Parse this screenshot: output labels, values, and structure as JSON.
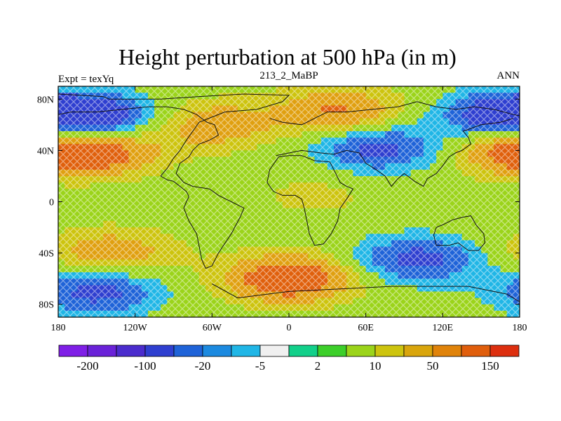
{
  "title": "Height perturbation at 500 hPa (in m)",
  "left_subtitle": "Expt = texYq",
  "center_subtitle": "213_2_MaBP",
  "right_subtitle": "ANN",
  "lat_ticks": [
    {
      "value": 80,
      "label": "80N"
    },
    {
      "value": 40,
      "label": "40N"
    },
    {
      "value": 0,
      "label": "0"
    },
    {
      "value": -40,
      "label": "40S"
    },
    {
      "value": -80,
      "label": "80S"
    }
  ],
  "lon_ticks": [
    {
      "value": -180,
      "label": "180"
    },
    {
      "value": -120,
      "label": "120W"
    },
    {
      "value": -60,
      "label": "60W"
    },
    {
      "value": 0,
      "label": "0"
    },
    {
      "value": 60,
      "label": "60E"
    },
    {
      "value": 120,
      "label": "120E"
    },
    {
      "value": 180,
      "label": "180"
    }
  ],
  "colorbar": {
    "colors": [
      "#7f1fe6",
      "#6a22d8",
      "#4b2ccd",
      "#2f3fd0",
      "#1f63d8",
      "#1c8ae0",
      "#20b6e6",
      "#f0f0f0",
      "#12d08a",
      "#3ccf2a",
      "#9bd41a",
      "#cdc40e",
      "#d9a50c",
      "#e0830a",
      "#e05e0c",
      "#dd2f0f"
    ],
    "labels": [
      {
        "after_box": 2,
        "text": "-200"
      },
      {
        "after_box": 4,
        "text": "-100"
      },
      {
        "after_box": 6,
        "text": "-20"
      },
      {
        "after_box": 8,
        "text": "-5"
      },
      {
        "after_box": 10,
        "text": "2"
      },
      {
        "after_box": 12,
        "text": "10"
      },
      {
        "after_box": 14,
        "text": "50"
      },
      {
        "after_box": 16,
        "text": "150"
      }
    ]
  },
  "field_palette": {
    "strong_negative": "#2f3fd0",
    "negative": "#1f63d8",
    "weak_negative": "#20b6e6",
    "neutral": "#9bd41a",
    "weak_positive": "#cdc40e",
    "positive": "#e0a010",
    "strong_positive": "#e0600c"
  },
  "features": [
    {
      "name": "high-lat-low-west",
      "lon": -150,
      "lat": 65,
      "amp": -1.4
    },
    {
      "name": "high-lat-low-east",
      "lon": 165,
      "lat": 68,
      "amp": -1.3
    },
    {
      "name": "subpolar-high-europe",
      "lon": 40,
      "lat": 70,
      "amp": 1.1
    },
    {
      "name": "subpolar-high-america",
      "lon": -60,
      "lat": 60,
      "amp": 0.9
    },
    {
      "name": "midlat-high-pacific",
      "lon": -150,
      "lat": 40,
      "amp": 1.2
    },
    {
      "name": "midlat-low-asia",
      "lon": 70,
      "lat": 42,
      "amp": -1.2
    },
    {
      "name": "midlat-high-east",
      "lon": 175,
      "lat": 40,
      "amp": 1.0
    },
    {
      "name": "south-high-pacific",
      "lon": -140,
      "lat": -40,
      "amp": 0.9
    },
    {
      "name": "south-low-pacific",
      "lon": -150,
      "lat": -70,
      "amp": -1.2
    },
    {
      "name": "south-high-atlantic",
      "lon": 0,
      "lat": -60,
      "amp": 1.6
    },
    {
      "name": "south-low-indian",
      "lon": 100,
      "lat": -45,
      "amp": -1.2
    },
    {
      "name": "tropics-neutral",
      "lon": 20,
      "lat": 5,
      "amp": 0.3
    }
  ],
  "coastlines": [
    [
      [
        -180,
        84
      ],
      [
        -145,
        82
      ],
      [
        -140,
        80
      ],
      [
        -100,
        80
      ],
      [
        -70,
        82
      ],
      [
        -35,
        84
      ],
      [
        0,
        83
      ],
      [
        -5,
        78
      ],
      [
        -25,
        72
      ],
      [
        -50,
        70
      ],
      [
        -60,
        66
      ],
      [
        -70,
        62
      ],
      [
        -75,
        55
      ],
      [
        -80,
        48
      ],
      [
        -85,
        40
      ],
      [
        -90,
        34
      ],
      [
        -95,
        26
      ],
      [
        -100,
        20
      ],
      [
        -95,
        17
      ],
      [
        -90,
        16
      ],
      [
        -85,
        12
      ],
      [
        -80,
        8
      ],
      [
        -78,
        4
      ],
      [
        -80,
        0
      ],
      [
        -82,
        -5
      ],
      [
        -78,
        -15
      ],
      [
        -72,
        -25
      ],
      [
        -70,
        -35
      ],
      [
        -68,
        -45
      ],
      [
        -65,
        -52
      ],
      [
        -60,
        -50
      ],
      [
        -55,
        -40
      ],
      [
        -45,
        -25
      ],
      [
        -38,
        -12
      ],
      [
        -35,
        -5
      ],
      [
        -45,
        0
      ],
      [
        -55,
        5
      ],
      [
        -62,
        10
      ],
      [
        -75,
        12
      ],
      [
        -82,
        15
      ],
      [
        -88,
        22
      ],
      [
        -85,
        30
      ],
      [
        -78,
        35
      ],
      [
        -75,
        40
      ],
      [
        -70,
        45
      ],
      [
        -62,
        48
      ],
      [
        -55,
        52
      ],
      [
        -58,
        60
      ],
      [
        -64,
        62
      ],
      [
        -72,
        68
      ],
      [
        -82,
        72
      ],
      [
        -95,
        74
      ],
      [
        -110,
        74
      ],
      [
        -130,
        72
      ],
      [
        -150,
        70
      ],
      [
        -170,
        70
      ],
      [
        -180,
        68
      ]
    ],
    [
      [
        -15,
        65
      ],
      [
        -5,
        62
      ],
      [
        10,
        60
      ],
      [
        20,
        65
      ],
      [
        30,
        70
      ],
      [
        45,
        70
      ],
      [
        65,
        72
      ],
      [
        85,
        74
      ],
      [
        100,
        78
      ],
      [
        115,
        74
      ],
      [
        130,
        72
      ],
      [
        145,
        74
      ],
      [
        160,
        72
      ],
      [
        175,
        68
      ],
      [
        180,
        67
      ]
    ],
    [
      [
        -10,
        36
      ],
      [
        0,
        38
      ],
      [
        10,
        40
      ],
      [
        25,
        38
      ],
      [
        35,
        37
      ],
      [
        45,
        40
      ],
      [
        55,
        38
      ],
      [
        60,
        30
      ],
      [
        68,
        25
      ],
      [
        75,
        20
      ],
      [
        80,
        12
      ],
      [
        85,
        18
      ],
      [
        90,
        22
      ],
      [
        98,
        16
      ],
      [
        105,
        12
      ],
      [
        108,
        18
      ],
      [
        115,
        22
      ],
      [
        120,
        28
      ],
      [
        125,
        35
      ],
      [
        130,
        38
      ],
      [
        135,
        40
      ],
      [
        142,
        45
      ],
      [
        140,
        50
      ],
      [
        136,
        55
      ],
      [
        150,
        60
      ],
      [
        165,
        62
      ],
      [
        175,
        65
      ]
    ],
    [
      [
        -15,
        25
      ],
      [
        -17,
        15
      ],
      [
        -12,
        8
      ],
      [
        -5,
        5
      ],
      [
        5,
        5
      ],
      [
        10,
        2
      ],
      [
        12,
        -5
      ],
      [
        14,
        -15
      ],
      [
        16,
        -25
      ],
      [
        20,
        -34
      ],
      [
        27,
        -33
      ],
      [
        33,
        -25
      ],
      [
        38,
        -15
      ],
      [
        40,
        -5
      ],
      [
        45,
        2
      ],
      [
        50,
        10
      ],
      [
        45,
        12
      ],
      [
        40,
        15
      ],
      [
        35,
        25
      ],
      [
        32,
        31
      ],
      [
        20,
        32
      ],
      [
        10,
        36
      ],
      [
        0,
        36
      ],
      [
        -8,
        35
      ],
      [
        -15,
        25
      ]
    ],
    [
      [
        115,
        -20
      ],
      [
        120,
        -18
      ],
      [
        128,
        -14
      ],
      [
        136,
        -12
      ],
      [
        142,
        -11
      ],
      [
        146,
        -18
      ],
      [
        152,
        -25
      ],
      [
        153,
        -32
      ],
      [
        148,
        -38
      ],
      [
        140,
        -38
      ],
      [
        132,
        -32
      ],
      [
        125,
        -34
      ],
      [
        115,
        -34
      ],
      [
        113,
        -26
      ],
      [
        115,
        -20
      ]
    ],
    [
      [
        -60,
        -64
      ],
      [
        -40,
        -75
      ],
      [
        0,
        -70
      ],
      [
        40,
        -68
      ],
      [
        80,
        -66
      ],
      [
        110,
        -66
      ],
      [
        140,
        -66
      ],
      [
        170,
        -72
      ],
      [
        180,
        -78
      ]
    ]
  ]
}
